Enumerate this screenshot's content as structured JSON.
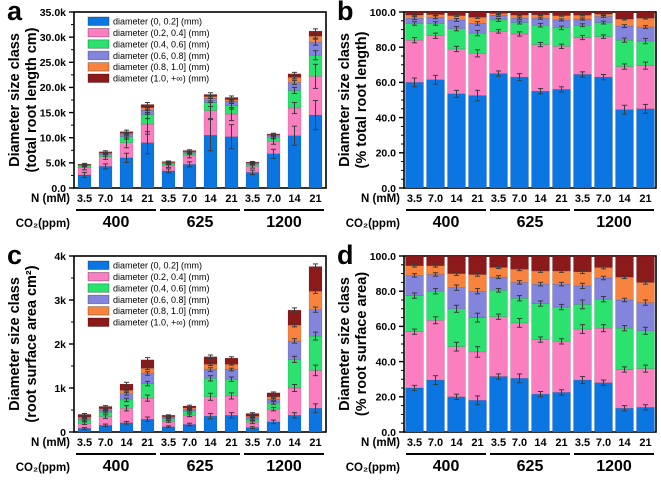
{
  "figure": {
    "background": "#ffffff"
  },
  "series": [
    {
      "key": "d0-02",
      "label": "diameter (0, 0.2] (mm)",
      "color": "#0b76e1"
    },
    {
      "key": "d02-04",
      "label": "diameter (0.2, 0.4] (mm)",
      "color": "#fb7ec1"
    },
    {
      "key": "d04-06",
      "label": "diameter (0.4, 0.6] (mm)",
      "color": "#2be26e"
    },
    {
      "key": "d06-08",
      "label": "diameter (0.6, 0.8] (mm)",
      "color": "#8384dc"
    },
    {
      "key": "d08-10",
      "label": "diameter (0.8, 1.0] (mm)",
      "color": "#f8833f"
    },
    {
      "key": "d10-inf",
      "label": "diameter (1.0, +∞) (mm)",
      "color": "#8c1a1a"
    }
  ],
  "xaxis": {
    "row1_label": "N (mM)",
    "row2_label": "CO₂(ppm)",
    "n_values": [
      "3.5",
      "7.0",
      "14",
      "21"
    ],
    "co2_groups": [
      "400",
      "625",
      "1200"
    ]
  },
  "chart_data": [
    {
      "id": "a",
      "letter": "a",
      "type": "stacked-bar",
      "percent": false,
      "legend": true,
      "ylabel_line1": "Diameter size class",
      "ylabel_line2": "(total root length cm)",
      "ylim": [
        0,
        35
      ],
      "y_unit": "thousand cm",
      "ytick_values": [
        0,
        5,
        10,
        15,
        20,
        25,
        30,
        35
      ],
      "ytick_labels": [
        "0.0",
        "5.0k",
        "10.0k",
        "15.0k",
        "20.0k",
        "25.0k",
        "30.0k",
        "35.0k"
      ],
      "minor_per_major": 1,
      "bars": [
        {
          "co2": "400",
          "n": "3.5",
          "segments": [
            2.6,
            1.4,
            0.4,
            0.15,
            0.1,
            0.1
          ],
          "errors": [
            0.5,
            0.4,
            0.2,
            0.15,
            0.1,
            0.15
          ]
        },
        {
          "co2": "400",
          "n": "7.0",
          "segments": [
            4.3,
            1.9,
            0.4,
            0.25,
            0.15,
            0.2
          ],
          "errors": [
            0.5,
            0.5,
            0.25,
            0.15,
            0.1,
            0.2
          ]
        },
        {
          "co2": "400",
          "n": "14",
          "segments": [
            6.0,
            3.0,
            1.2,
            0.5,
            0.2,
            0.3
          ],
          "errors": [
            0.9,
            1.0,
            0.5,
            0.3,
            0.2,
            0.3
          ]
        },
        {
          "co2": "400",
          "n": "21",
          "segments": [
            9.0,
            3.7,
            1.9,
            0.9,
            0.5,
            0.6
          ],
          "errors": [
            2.2,
            2.0,
            0.8,
            0.5,
            0.3,
            0.4
          ]
        },
        {
          "co2": "625",
          "n": "3.5",
          "segments": [
            3.4,
            1.0,
            0.4,
            0.2,
            0.1,
            0.15
          ],
          "errors": [
            0.4,
            0.3,
            0.15,
            0.1,
            0.08,
            0.12
          ]
        },
        {
          "co2": "625",
          "n": "7.0",
          "segments": [
            4.7,
            1.7,
            0.5,
            0.2,
            0.15,
            0.2
          ],
          "errors": [
            0.5,
            0.4,
            0.2,
            0.12,
            0.1,
            0.15
          ]
        },
        {
          "co2": "625",
          "n": "14",
          "segments": [
            10.5,
            4.9,
            1.6,
            0.8,
            0.4,
            0.4
          ],
          "errors": [
            3.1,
            1.6,
            0.8,
            0.5,
            0.3,
            0.35
          ]
        },
        {
          "co2": "625",
          "n": "21",
          "segments": [
            10.2,
            4.5,
            1.7,
            0.8,
            0.4,
            0.4
          ],
          "errors": [
            2.4,
            1.3,
            0.7,
            0.4,
            0.25,
            0.3
          ]
        },
        {
          "co2": "1200",
          "n": "3.5",
          "segments": [
            3.1,
            1.2,
            0.4,
            0.2,
            0.1,
            0.15
          ],
          "errors": [
            0.45,
            0.35,
            0.15,
            0.1,
            0.08,
            0.12
          ]
        },
        {
          "co2": "1200",
          "n": "7.0",
          "segments": [
            6.8,
            2.5,
            0.8,
            0.35,
            0.15,
            0.15
          ],
          "errors": [
            0.9,
            0.6,
            0.3,
            0.2,
            0.1,
            0.15
          ]
        },
        {
          "co2": "1200",
          "n": "14",
          "segments": [
            10.4,
            5.5,
            3.5,
            1.6,
            1.0,
            0.7
          ],
          "errors": [
            1.9,
            1.1,
            0.6,
            0.4,
            0.3,
            0.3
          ]
        },
        {
          "co2": "1200",
          "n": "21",
          "segments": [
            14.5,
            7.7,
            4.2,
            2.6,
            1.2,
            1.0
          ],
          "errors": [
            2.9,
            2.4,
            0.9,
            0.6,
            0.4,
            0.45
          ]
        }
      ]
    },
    {
      "id": "b",
      "letter": "b",
      "type": "stacked-bar",
      "percent": true,
      "legend": false,
      "ylabel_line1": "Diameter size class",
      "ylabel_line2": "(% total root length)",
      "ylim": [
        0,
        100
      ],
      "y_unit": "%",
      "ytick_values": [
        0,
        20,
        40,
        60,
        80,
        100
      ],
      "ytick_labels": [
        "0.0",
        "20.0",
        "40.0",
        "60.0",
        "80.0",
        "100.0"
      ],
      "minor_per_major": 3,
      "bars": [
        {
          "co2": "400",
          "n": "3.5",
          "segments": [
            60,
            24,
            9.5,
            3,
            1.8,
            1.7
          ],
          "errors": [
            2.5,
            1.5,
            1,
            0.8,
            0.5,
            0
          ]
        },
        {
          "co2": "400",
          "n": "7.0",
          "segments": [
            61.5,
            25,
            7,
            3.5,
            1.6,
            1.4
          ],
          "errors": [
            2.5,
            1.5,
            1,
            0.8,
            0.5,
            0
          ]
        },
        {
          "co2": "400",
          "n": "14",
          "segments": [
            53.5,
            25.5,
            11.5,
            5,
            2.5,
            2
          ],
          "errors": [
            2,
            1.5,
            1.2,
            0.8,
            0.5,
            0
          ]
        },
        {
          "co2": "400",
          "n": "21",
          "segments": [
            52.5,
            24,
            11.5,
            5.5,
            3.5,
            3
          ],
          "errors": [
            3,
            2,
            1.5,
            1,
            0.6,
            0
          ]
        },
        {
          "co2": "625",
          "n": "3.5",
          "segments": [
            65,
            24,
            6.5,
            2.5,
            1.2,
            0.8
          ],
          "errors": [
            1.5,
            1,
            0.8,
            0.5,
            0.4,
            0
          ]
        },
        {
          "co2": "625",
          "n": "7.0",
          "segments": [
            63,
            24.5,
            6.5,
            2.5,
            1.8,
            1.7
          ],
          "errors": [
            2,
            1.2,
            0.8,
            0.6,
            0.4,
            0
          ]
        },
        {
          "co2": "625",
          "n": "14",
          "segments": [
            55,
            26.5,
            11,
            4,
            1.9,
            1.6
          ],
          "errors": [
            1.5,
            1.2,
            1,
            0.6,
            0.4,
            0
          ]
        },
        {
          "co2": "625",
          "n": "21",
          "segments": [
            56,
            24.5,
            10.5,
            4.5,
            2.5,
            2
          ],
          "errors": [
            1.5,
            1.2,
            1,
            0.6,
            0.4,
            0
          ]
        },
        {
          "co2": "1200",
          "n": "3.5",
          "segments": [
            64.5,
            21,
            7,
            3.5,
            2.2,
            1.8
          ],
          "errors": [
            1.5,
            1.2,
            0.8,
            0.6,
            0.4,
            0
          ]
        },
        {
          "co2": "1200",
          "n": "7.0",
          "segments": [
            63,
            23,
            8,
            3.5,
            1.3,
            1.2
          ],
          "errors": [
            1.5,
            1,
            0.8,
            0.5,
            0.4,
            0
          ]
        },
        {
          "co2": "1200",
          "n": "14",
          "segments": [
            44.5,
            24.5,
            15,
            8,
            4,
            4
          ],
          "errors": [
            2.5,
            1.5,
            1.2,
            0.8,
            0.5,
            0
          ]
        },
        {
          "co2": "1200",
          "n": "21",
          "segments": [
            45,
            24.5,
            14,
            8,
            5,
            3.5
          ],
          "errors": [
            2.5,
            2,
            1.5,
            0.8,
            0.5,
            0
          ]
        }
      ]
    },
    {
      "id": "c",
      "letter": "c",
      "type": "stacked-bar",
      "percent": false,
      "legend": true,
      "ylabel_line1": "Diameter size class",
      "ylabel_line2": "(root surface area cm²)",
      "ylim": [
        0,
        4
      ],
      "y_unit": "thousand cm²",
      "ytick_values": [
        0,
        1,
        2,
        3,
        4
      ],
      "ytick_labels": [
        "0",
        "1k",
        "2k",
        "3k",
        "4k"
      ],
      "minor_per_major": 1,
      "bars": [
        {
          "co2": "400",
          "n": "3.5",
          "segments": [
            0.08,
            0.12,
            0.07,
            0.04,
            0.03,
            0.06
          ],
          "errors": [
            0.02,
            0.03,
            0.02,
            0.01,
            0.01,
            0.02
          ]
        },
        {
          "co2": "400",
          "n": "7.0",
          "segments": [
            0.15,
            0.2,
            0.1,
            0.05,
            0.03,
            0.05
          ],
          "errors": [
            0.03,
            0.04,
            0.02,
            0.01,
            0.01,
            0.02
          ]
        },
        {
          "co2": "400",
          "n": "14",
          "segments": [
            0.21,
            0.33,
            0.19,
            0.14,
            0.08,
            0.14
          ],
          "errors": [
            0.03,
            0.06,
            0.04,
            0.03,
            0.02,
            0.04
          ]
        },
        {
          "co2": "400",
          "n": "21",
          "segments": [
            0.29,
            0.48,
            0.33,
            0.23,
            0.12,
            0.19
          ],
          "errors": [
            0.05,
            0.07,
            0.05,
            0.04,
            0.03,
            0.05
          ]
        },
        {
          "co2": "625",
          "n": "3.5",
          "segments": [
            0.12,
            0.12,
            0.06,
            0.03,
            0.02,
            0.03
          ],
          "errors": [
            0.02,
            0.02,
            0.01,
            0.01,
            0.01,
            0.01
          ]
        },
        {
          "co2": "625",
          "n": "7.0",
          "segments": [
            0.17,
            0.21,
            0.09,
            0.05,
            0.03,
            0.04
          ],
          "errors": [
            0.03,
            0.03,
            0.02,
            0.01,
            0.01,
            0.02
          ]
        },
        {
          "co2": "625",
          "n": "14",
          "segments": [
            0.36,
            0.44,
            0.42,
            0.2,
            0.12,
            0.17
          ],
          "errors": [
            0.06,
            0.08,
            0.06,
            0.04,
            0.03,
            0.04
          ]
        },
        {
          "co2": "625",
          "n": "21",
          "segments": [
            0.38,
            0.44,
            0.38,
            0.22,
            0.12,
            0.14
          ],
          "errors": [
            0.06,
            0.07,
            0.05,
            0.03,
            0.02,
            0.03
          ]
        },
        {
          "co2": "1200",
          "n": "3.5",
          "segments": [
            0.1,
            0.12,
            0.07,
            0.04,
            0.03,
            0.06
          ],
          "errors": [
            0.02,
            0.03,
            0.02,
            0.01,
            0.01,
            0.02
          ]
        },
        {
          "co2": "1200",
          "n": "7.0",
          "segments": [
            0.23,
            0.29,
            0.14,
            0.08,
            0.06,
            0.09
          ],
          "errors": [
            0.04,
            0.04,
            0.03,
            0.02,
            0.01,
            0.02
          ]
        },
        {
          "co2": "1200",
          "n": "14",
          "segments": [
            0.38,
            0.62,
            0.65,
            0.42,
            0.36,
            0.34
          ],
          "errors": [
            0.06,
            0.08,
            0.07,
            0.05,
            0.04,
            0.05
          ]
        },
        {
          "co2": "1200",
          "n": "21",
          "segments": [
            0.54,
            0.86,
            0.78,
            0.6,
            0.42,
            0.56
          ],
          "errors": [
            0.1,
            0.12,
            0.09,
            0.06,
            0.05,
            0.06
          ]
        }
      ]
    },
    {
      "id": "d",
      "letter": "d",
      "type": "stacked-bar",
      "percent": true,
      "legend": false,
      "ylabel_line1": "Diameter size class",
      "ylabel_line2": "(% root surface area)",
      "ylim": [
        0,
        100
      ],
      "y_unit": "%",
      "ytick_values": [
        0,
        20,
        40,
        60,
        80,
        100
      ],
      "ytick_labels": [
        "0.0",
        "20.0",
        "40.0",
        "60.0",
        "80.0",
        "100.0"
      ],
      "minor_per_major": 3,
      "bars": [
        {
          "co2": "400",
          "n": "3.5",
          "segments": [
            25,
            32,
            20.5,
            11.5,
            5.5,
            5.5
          ],
          "errors": [
            1.5,
            1.5,
            1.5,
            1,
            0.8,
            0
          ]
        },
        {
          "co2": "400",
          "n": "7.0",
          "segments": [
            29.5,
            34,
            16.5,
            9.5,
            5,
            5.5
          ],
          "errors": [
            2.5,
            2,
            1.5,
            1,
            0.8,
            0
          ]
        },
        {
          "co2": "400",
          "n": "14",
          "segments": [
            20,
            28.5,
            21.5,
            12,
            8,
            10
          ],
          "errors": [
            1.5,
            2.5,
            2,
            1.5,
            1,
            0
          ]
        },
        {
          "co2": "400",
          "n": "21",
          "segments": [
            18,
            27.5,
            19.5,
            15,
            9.5,
            10.5
          ],
          "errors": [
            2.5,
            3,
            2.5,
            1.5,
            1,
            0
          ]
        },
        {
          "co2": "625",
          "n": "3.5",
          "segments": [
            31.5,
            34,
            15,
            7.5,
            5.5,
            6.5
          ],
          "errors": [
            1.5,
            1.5,
            1,
            0.8,
            0.6,
            0
          ]
        },
        {
          "co2": "625",
          "n": "7.0",
          "segments": [
            30.5,
            31.5,
            14,
            9,
            7.5,
            7.5
          ],
          "errors": [
            2.5,
            2.5,
            1.5,
            1,
            0.8,
            0
          ]
        },
        {
          "co2": "625",
          "n": "14",
          "segments": [
            21.5,
            31,
            20.5,
            11,
            7.5,
            8.5
          ],
          "errors": [
            1.5,
            1.5,
            1.5,
            1,
            0.8,
            0
          ]
        },
        {
          "co2": "625",
          "n": "21",
          "segments": [
            22.5,
            29,
            19.5,
            13,
            7.5,
            8.5
          ],
          "errors": [
            1.5,
            1.5,
            1.5,
            1,
            0.8,
            0
          ]
        },
        {
          "co2": "1200",
          "n": "3.5",
          "segments": [
            29.5,
            29,
            14,
            10.5,
            8,
            9
          ],
          "errors": [
            2,
            2.5,
            2.5,
            1.5,
            1,
            0
          ]
        },
        {
          "co2": "1200",
          "n": "7.0",
          "segments": [
            28,
            31,
            16.5,
            12,
            6,
            6.5
          ],
          "errors": [
            1.5,
            2,
            1.5,
            1,
            0.8,
            0
          ]
        },
        {
          "co2": "1200",
          "n": "14",
          "segments": [
            13.5,
            22,
            23.5,
            16,
            13,
            12
          ],
          "errors": [
            1.5,
            1.5,
            1.5,
            1,
            0.8,
            0
          ]
        },
        {
          "co2": "1200",
          "n": "21",
          "segments": [
            14,
            22,
            21.5,
            16,
            11.5,
            15
          ],
          "errors": [
            1.5,
            2,
            2,
            1.5,
            1,
            0
          ]
        }
      ]
    }
  ]
}
